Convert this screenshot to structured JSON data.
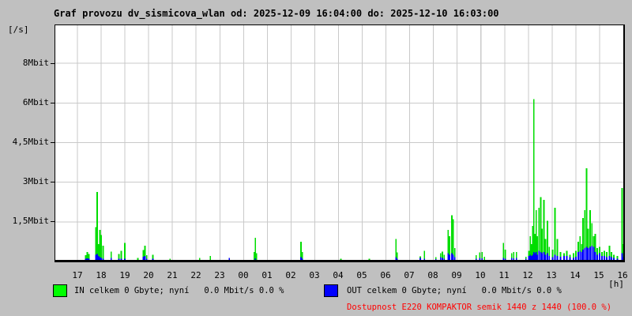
{
  "title": "Graf provozu dv_sismicova_wlan od: 2025-12-09 16:04:00 do: 2025-12-10 16:03:00",
  "y_unit_label": "[/s]",
  "x_unit_label": "[h]",
  "legend": {
    "in_label": "IN celkem 0 Gbyte; nyní   0.0 Mbit/s 0.0 %",
    "out_label": "OUT celkem 0 Gbyte; nyní   0.0 Mbit/s 0.0 %",
    "availability_label": "Dostupnost E220 KOMPAKTOR semik 1440 z 1440 (100.0 %)",
    "in_color": "#00ff00",
    "out_color": "#0000ff",
    "availability_color": "#ff0000"
  },
  "chart_data": {
    "type": "area",
    "title": "Graf provozu dv_sismicova_wlan",
    "period_from": "2025-12-09 16:04:00",
    "period_to": "2025-12-10 16:03:00",
    "xlabel": "[h]",
    "ylabel": "[/s]",
    "x_tick_labels": [
      "17",
      "18",
      "19",
      "20",
      "21",
      "22",
      "23",
      "00",
      "01",
      "02",
      "03",
      "04",
      "05",
      "06",
      "07",
      "08",
      "09",
      "10",
      "11",
      "12",
      "13",
      "14",
      "15",
      "16"
    ],
    "y_tick_labels": [
      "8Mbit",
      "6Mbit",
      "4,5Mbit",
      "3Mbit",
      "1,5Mbit"
    ],
    "y_tick_values_mbit": [
      8,
      6,
      4.5,
      3,
      1.5
    ],
    "grid": true,
    "start_clock_hour": 16.067,
    "hours_span": 24,
    "series": [
      {
        "name": "IN",
        "color": "#00dd00",
        "unit": "Mbit/s"
      },
      {
        "name": "OUT",
        "color": "#0000ff",
        "unit": "Mbit/s"
      }
    ],
    "spikes_hour_in_out": [
      [
        17.35,
        0.18,
        0.04
      ],
      [
        17.42,
        0.3,
        0.06
      ],
      [
        17.48,
        0.22,
        0.04
      ],
      [
        17.78,
        1.25,
        0.2
      ],
      [
        17.83,
        2.6,
        0.22
      ],
      [
        17.88,
        0.6,
        0.15
      ],
      [
        17.95,
        1.15,
        0.1
      ],
      [
        18.0,
        0.95,
        0.08
      ],
      [
        18.08,
        0.55,
        0.05
      ],
      [
        18.42,
        0.32,
        0.08
      ],
      [
        18.75,
        0.22,
        0.04
      ],
      [
        18.85,
        0.35,
        0.05
      ],
      [
        19.0,
        0.65,
        0.05
      ],
      [
        19.55,
        0.08,
        0.0
      ],
      [
        19.78,
        0.38,
        0.12
      ],
      [
        19.85,
        0.55,
        0.15
      ],
      [
        19.92,
        0.18,
        0.05
      ],
      [
        20.18,
        0.2,
        0.04
      ],
      [
        20.9,
        0.05,
        0.0
      ],
      [
        22.15,
        0.08,
        0.0
      ],
      [
        22.6,
        0.15,
        0.0
      ],
      [
        23.4,
        0.04,
        0.07
      ],
      [
        0.45,
        0.3,
        0.0
      ],
      [
        0.5,
        0.85,
        0.06
      ],
      [
        0.55,
        0.25,
        0.0
      ],
      [
        2.42,
        0.7,
        0.1
      ],
      [
        2.47,
        0.3,
        0.05
      ],
      [
        4.1,
        0.05,
        0.0
      ],
      [
        5.3,
        0.04,
        0.0
      ],
      [
        6.42,
        0.8,
        0.1
      ],
      [
        6.47,
        0.28,
        0.05
      ],
      [
        7.45,
        0.13,
        0.07
      ],
      [
        7.62,
        0.35,
        0.05
      ],
      [
        8.1,
        0.1,
        0.03
      ],
      [
        8.3,
        0.25,
        0.1
      ],
      [
        8.38,
        0.32,
        0.08
      ],
      [
        8.45,
        0.2,
        0.05
      ],
      [
        8.62,
        1.15,
        0.25
      ],
      [
        8.68,
        0.9,
        0.2
      ],
      [
        8.78,
        1.7,
        0.25
      ],
      [
        8.83,
        1.55,
        0.2
      ],
      [
        8.9,
        0.45,
        0.1
      ],
      [
        9.8,
        0.18,
        0.05
      ],
      [
        9.95,
        0.28,
        0.08
      ],
      [
        10.05,
        0.3,
        0.06
      ],
      [
        10.15,
        0.12,
        0.0
      ],
      [
        10.95,
        0.65,
        0.08
      ],
      [
        11.02,
        0.4,
        0.05
      ],
      [
        11.3,
        0.25,
        0.08
      ],
      [
        11.38,
        0.3,
        0.06
      ],
      [
        11.5,
        0.3,
        0.08
      ],
      [
        11.9,
        0.12,
        0.04
      ],
      [
        12.02,
        0.35,
        0.15
      ],
      [
        12.08,
        0.9,
        0.2
      ],
      [
        12.13,
        0.6,
        0.15
      ],
      [
        12.18,
        1.3,
        0.2
      ],
      [
        12.23,
        6.15,
        0.3
      ],
      [
        12.28,
        1.0,
        0.25
      ],
      [
        12.33,
        1.9,
        0.3
      ],
      [
        12.38,
        0.9,
        0.2
      ],
      [
        12.45,
        2.0,
        0.35
      ],
      [
        12.52,
        2.4,
        0.3
      ],
      [
        12.58,
        1.2,
        0.25
      ],
      [
        12.65,
        2.3,
        0.3
      ],
      [
        12.72,
        0.8,
        0.2
      ],
      [
        12.8,
        1.5,
        0.25
      ],
      [
        12.88,
        0.5,
        0.15
      ],
      [
        13.02,
        0.4,
        0.1
      ],
      [
        13.12,
        2.0,
        0.2
      ],
      [
        13.22,
        0.8,
        0.15
      ],
      [
        13.35,
        0.3,
        0.12
      ],
      [
        13.5,
        0.25,
        0.15
      ],
      [
        13.62,
        0.35,
        0.15
      ],
      [
        13.75,
        0.2,
        0.1
      ],
      [
        13.9,
        0.25,
        0.08
      ],
      [
        14.0,
        0.35,
        0.12
      ],
      [
        14.1,
        0.7,
        0.3
      ],
      [
        14.18,
        0.9,
        0.35
      ],
      [
        14.25,
        0.6,
        0.3
      ],
      [
        14.3,
        1.6,
        0.4
      ],
      [
        14.38,
        1.9,
        0.45
      ],
      [
        14.45,
        3.5,
        0.5
      ],
      [
        14.52,
        1.2,
        0.45
      ],
      [
        14.6,
        1.9,
        0.5
      ],
      [
        14.68,
        1.4,
        0.55
      ],
      [
        14.75,
        0.9,
        0.5
      ],
      [
        14.82,
        1.0,
        0.3
      ],
      [
        14.9,
        0.45,
        0.2
      ],
      [
        15.0,
        0.5,
        0.25
      ],
      [
        15.1,
        0.3,
        0.15
      ],
      [
        15.2,
        0.35,
        0.15
      ],
      [
        15.3,
        0.3,
        0.1
      ],
      [
        15.42,
        0.55,
        0.15
      ],
      [
        15.5,
        0.3,
        0.1
      ],
      [
        15.6,
        0.2,
        0.08
      ],
      [
        15.75,
        0.15,
        0.05
      ],
      [
        15.95,
        2.75,
        0.25
      ],
      [
        16.0,
        0.6,
        0.1
      ]
    ]
  }
}
